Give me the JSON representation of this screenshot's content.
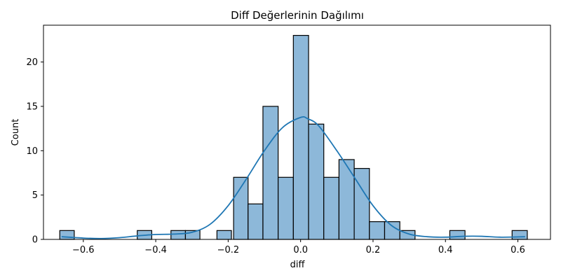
{
  "chart_data": {
    "type": "bar",
    "title": "Diff Değerlerinin Dağılımı",
    "xlabel": "diff",
    "ylabel": "Count",
    "xlim": [
      -0.71,
      0.69
    ],
    "ylim": [
      0,
      24.15
    ],
    "xticks": [
      -0.6,
      -0.4,
      -0.2,
      0.0,
      0.2,
      0.4,
      0.6
    ],
    "xtick_labels": [
      "−0.6",
      "−0.4",
      "−0.2",
      "0.0",
      "0.2",
      "0.4",
      "0.6"
    ],
    "yticks": [
      0,
      5,
      10,
      15,
      20
    ],
    "ytick_labels": [
      "0",
      "5",
      "10",
      "15",
      "20"
    ],
    "grid": false,
    "bar_color": "#8db8d9",
    "kde_color": "#1f77b4",
    "bins": [
      {
        "x0": -0.665,
        "x1": -0.625,
        "count": 1
      },
      {
        "x0": -0.451,
        "x1": -0.411,
        "count": 1
      },
      {
        "x0": -0.358,
        "x1": -0.318,
        "count": 1
      },
      {
        "x0": -0.318,
        "x1": -0.278,
        "count": 1
      },
      {
        "x0": -0.231,
        "x1": -0.191,
        "count": 1
      },
      {
        "x0": -0.185,
        "x1": -0.145,
        "count": 7
      },
      {
        "x0": -0.145,
        "x1": -0.104,
        "count": 4
      },
      {
        "x0": -0.104,
        "x1": -0.062,
        "count": 15
      },
      {
        "x0": -0.062,
        "x1": -0.02,
        "count": 7
      },
      {
        "x0": -0.02,
        "x1": 0.022,
        "count": 23
      },
      {
        "x0": 0.022,
        "x1": 0.064,
        "count": 13
      },
      {
        "x0": 0.064,
        "x1": 0.106,
        "count": 7
      },
      {
        "x0": 0.106,
        "x1": 0.148,
        "count": 9
      },
      {
        "x0": 0.148,
        "x1": 0.19,
        "count": 8
      },
      {
        "x0": 0.19,
        "x1": 0.232,
        "count": 2
      },
      {
        "x0": 0.232,
        "x1": 0.274,
        "count": 2
      },
      {
        "x0": 0.274,
        "x1": 0.316,
        "count": 1
      },
      {
        "x0": 0.412,
        "x1": 0.454,
        "count": 1
      },
      {
        "x0": 0.584,
        "x1": 0.626,
        "count": 1
      }
    ],
    "kde": {
      "x": [
        -0.66,
        -0.6,
        -0.55,
        -0.5,
        -0.45,
        -0.4,
        -0.35,
        -0.3,
        -0.25,
        -0.2,
        -0.15,
        -0.1,
        -0.05,
        0.0,
        0.02,
        0.05,
        0.1,
        0.15,
        0.2,
        0.25,
        0.3,
        0.35,
        0.4,
        0.45,
        0.5,
        0.55,
        0.62
      ],
      "y": [
        0.3,
        0.15,
        0.1,
        0.2,
        0.4,
        0.55,
        0.6,
        0.8,
        1.7,
        3.8,
        6.8,
        10.0,
        12.6,
        13.75,
        13.6,
        12.8,
        10.0,
        6.9,
        3.8,
        1.6,
        0.6,
        0.3,
        0.25,
        0.35,
        0.35,
        0.25,
        0.3
      ]
    }
  }
}
